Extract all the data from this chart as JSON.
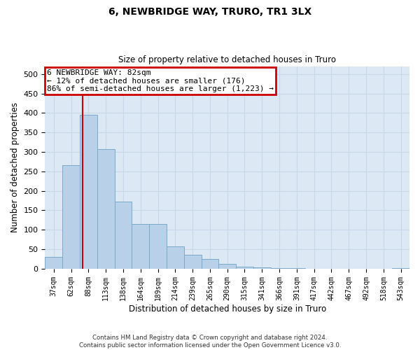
{
  "title": "6, NEWBRIDGE WAY, TRURO, TR1 3LX",
  "subtitle": "Size of property relative to detached houses in Truro",
  "xlabel": "Distribution of detached houses by size in Truro",
  "ylabel": "Number of detached properties",
  "footer_line1": "Contains HM Land Registry data © Crown copyright and database right 2024.",
  "footer_line2": "Contains public sector information licensed under the Open Government Licence v3.0.",
  "bin_labels": [
    "37sqm",
    "62sqm",
    "88sqm",
    "113sqm",
    "138sqm",
    "164sqm",
    "189sqm",
    "214sqm",
    "239sqm",
    "265sqm",
    "290sqm",
    "315sqm",
    "341sqm",
    "366sqm",
    "391sqm",
    "417sqm",
    "442sqm",
    "467sqm",
    "492sqm",
    "518sqm",
    "543sqm"
  ],
  "bar_values": [
    30,
    265,
    395,
    308,
    173,
    115,
    115,
    57,
    35,
    25,
    13,
    5,
    3,
    1,
    1,
    0,
    0,
    0,
    0,
    0,
    2
  ],
  "bar_color": "#b8d0e8",
  "bar_edge_color": "#7aaac8",
  "grid_color": "#c8d8e8",
  "background_color": "#dce8f4",
  "vline_x": 1.65,
  "vline_color": "#cc0000",
  "annotation_text": "6 NEWBRIDGE WAY: 82sqm\n← 12% of detached houses are smaller (176)\n86% of semi-detached houses are larger (1,223) →",
  "annotation_box_color": "#cc0000",
  "ylim": [
    0,
    520
  ],
  "yticks": [
    0,
    50,
    100,
    150,
    200,
    250,
    300,
    350,
    400,
    450,
    500
  ]
}
